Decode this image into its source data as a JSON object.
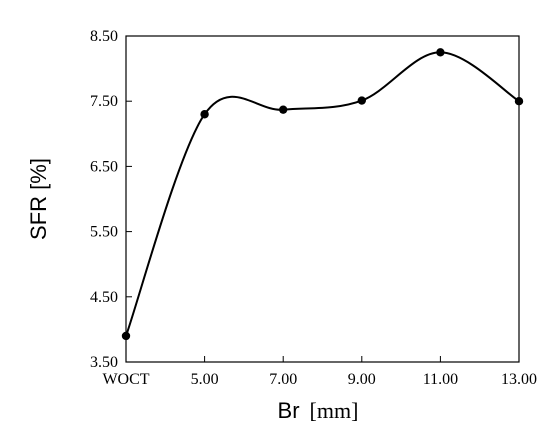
{
  "chart_data": {
    "type": "line",
    "x_categories": [
      "WOCT",
      "5.00",
      "7.00",
      "9.00",
      "11.00",
      "13.00"
    ],
    "series": [
      {
        "values": [
          3.9,
          7.3,
          7.37,
          7.51,
          8.25,
          7.5
        ]
      }
    ],
    "ylim": [
      3.5,
      8.5
    ],
    "y_ticks": [
      "3.50",
      "4.50",
      "5.50",
      "6.50",
      "7.50",
      "8.50"
    ],
    "ylabel": "SFR [%]",
    "xlabel_main": "Br",
    "xlabel_unit": "[mm]",
    "grid": false,
    "smooth": true,
    "line_color": "#000000",
    "marker_color": "#000000"
  }
}
